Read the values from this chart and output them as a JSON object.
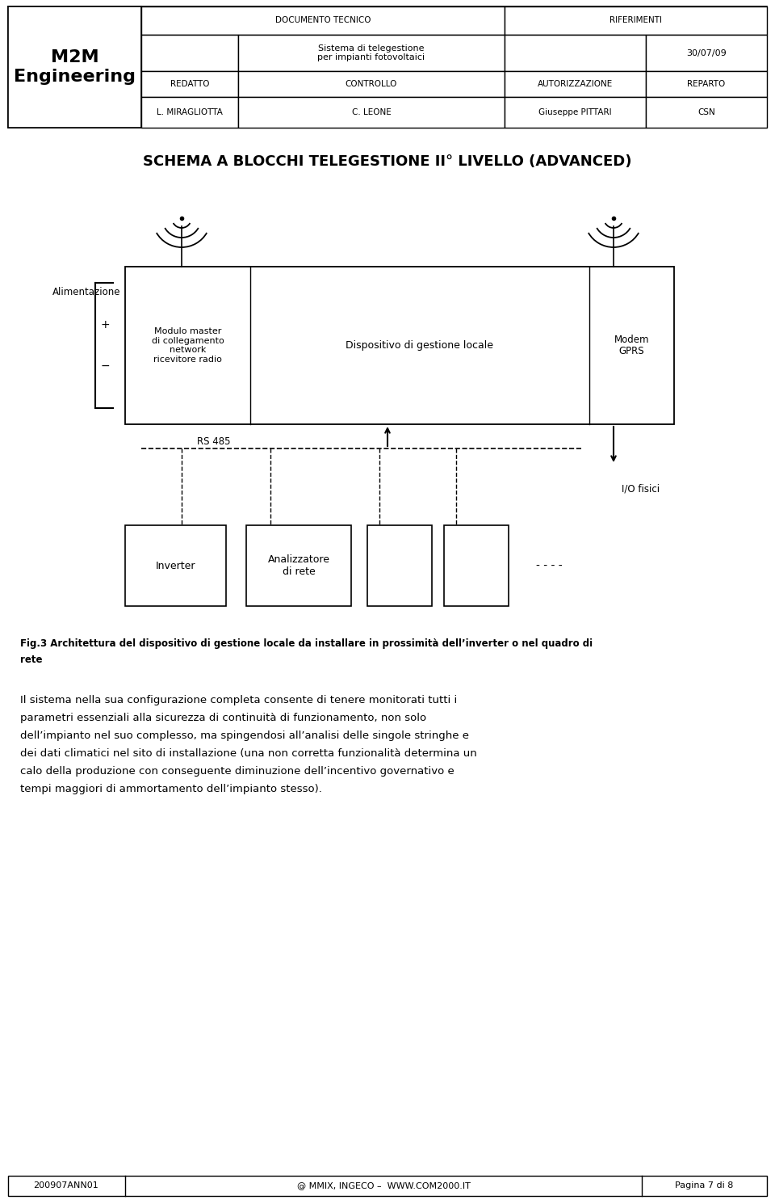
{
  "header_doc_tecnico": "DOCUMENTO TECNICO",
  "header_riferimenti": "RIFERIMENTI",
  "header_sistema": "Sistema di telegestione\nper impianti fotovoltaici",
  "header_date": "30/07/09",
  "header_redatto": "REDATTO",
  "header_controllo": "CONTROLLO",
  "header_autorizzazione": "AUTORIZZAZIONE",
  "header_reparto": "REPARTO",
  "header_miragliotta": "L. MIRAGLIOTTA",
  "header_leone": "C. LEONE",
  "header_pittari": "Giuseppe PITTARI",
  "header_csn": "CSN",
  "schema_title": "SCHEMA A BLOCCHI TELEGESTIONE II° LIVELLO (ADVANCED)",
  "block_alimentazione": "Alimentazione",
  "block_modulo": "Modulo master\ndi collegamento\nnetwork\nricevitore radio",
  "block_dispositivo": "Dispositivo di gestione locale",
  "block_modem": "Modem\nGPRS",
  "block_rs485": "RS 485",
  "block_io": "I/O fisici",
  "block_inverter": "Inverter",
  "block_analizzatore": "Analizzatore\ndi rete",
  "fig_caption_bold": "Fig.3 Architettura del dispositivo di gestione locale da installare in prossimità dell’inverter o nel quadro di",
  "fig_caption_normal": "rete",
  "body_line1": "Il sistema nella sua configurazione completa consente di tenere monitorati tutti i",
  "body_line2": "parametri essenziali alla sicurezza di continuità di funzionamento, non solo",
  "body_line3": "dell’impianto nel suo complesso, ma spingendosi all’analisi delle singole stringhe e",
  "body_line4": "dei dati climatici nel sito di installazione (una non corretta funzionalità determina un",
  "body_line5": "calo della produzione con conseguente diminuzione dell’incentivo governativo e",
  "body_line6": "tempi maggiori di ammortamento dell’impianto stesso).",
  "footer_left": "200907ANN01",
  "footer_center": "@ MMIX, INGECO –  WWW.COM2000.IT",
  "footer_right": "Pagina 7 di 8"
}
